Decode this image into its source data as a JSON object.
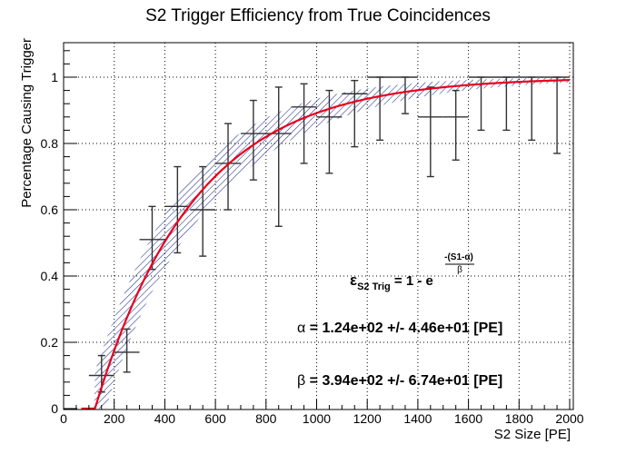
{
  "chart_data": {
    "type": "scatter",
    "title": "S2 Trigger Efficiency from True Coincidences",
    "xlabel": "S2 Size [PE]",
    "ylabel": "Percentage Causing Trigger",
    "xlim": [
      0,
      2000
    ],
    "ylim": [
      0,
      1.1
    ],
    "grid": true,
    "x_ticks": [
      0,
      200,
      400,
      600,
      800,
      1000,
      1200,
      1400,
      1600,
      1800,
      2000
    ],
    "y_ticks": [
      0,
      0.2,
      0.4,
      0.6,
      0.8,
      1
    ],
    "x_tick_labels": [
      "0",
      "200",
      "400",
      "600",
      "800",
      "1000",
      "1200",
      "1400",
      "1600",
      "1800",
      "2000"
    ],
    "y_tick_labels": [
      "0",
      "0.2",
      "0.4",
      "0.6",
      "0.8",
      "1"
    ],
    "points": [
      {
        "x": 150,
        "xerr": 50,
        "y": 0.1,
        "ylo": 0.05,
        "yhi": 0.16
      },
      {
        "x": 250,
        "xerr": 50,
        "y": 0.17,
        "ylo": 0.11,
        "yhi": 0.24
      },
      {
        "x": 350,
        "xerr": 50,
        "y": 0.51,
        "ylo": 0.42,
        "yhi": 0.61
      },
      {
        "x": 450,
        "xerr": 50,
        "y": 0.61,
        "ylo": 0.47,
        "yhi": 0.73
      },
      {
        "x": 550,
        "xerr": 50,
        "y": 0.6,
        "ylo": 0.46,
        "yhi": 0.73
      },
      {
        "x": 650,
        "xerr": 50,
        "y": 0.74,
        "ylo": 0.6,
        "yhi": 0.86
      },
      {
        "x": 750,
        "xerr": 50,
        "y": 0.83,
        "ylo": 0.69,
        "yhi": 0.93
      },
      {
        "x": 850,
        "xerr": 50,
        "y": 0.83,
        "ylo": 0.55,
        "yhi": 0.97
      },
      {
        "x": 950,
        "xerr": 50,
        "y": 0.91,
        "ylo": 0.74,
        "yhi": 0.98
      },
      {
        "x": 1050,
        "xerr": 50,
        "y": 0.88,
        "ylo": 0.71,
        "yhi": 0.96
      },
      {
        "x": 1150,
        "xerr": 50,
        "y": 0.95,
        "ylo": 0.79,
        "yhi": 0.99
      },
      {
        "x": 1250,
        "xerr": 50,
        "y": 1.0,
        "ylo": 0.81,
        "yhi": 1.0
      },
      {
        "x": 1350,
        "xerr": 50,
        "y": 1.0,
        "ylo": 0.89,
        "yhi": 1.0
      },
      {
        "x": 1450,
        "xerr": 50,
        "y": 0.88,
        "ylo": 0.7,
        "yhi": 0.97
      },
      {
        "x": 1550,
        "xerr": 50,
        "y": 0.88,
        "ylo": 0.75,
        "yhi": 0.96
      },
      {
        "x": 1650,
        "xerr": 50,
        "y": 1.0,
        "ylo": 0.84,
        "yhi": 1.0
      },
      {
        "x": 1750,
        "xerr": 50,
        "y": 1.0,
        "ylo": 0.84,
        "yhi": 1.0
      },
      {
        "x": 1850,
        "xerr": 50,
        "y": 1.0,
        "ylo": 0.81,
        "yhi": 1.0
      },
      {
        "x": 1950,
        "xerr": 50,
        "y": 1.0,
        "ylo": 0.77,
        "yhi": 1.0
      }
    ],
    "fit": {
      "formula": "1 - exp(-(S1 - alpha)/beta)",
      "alpha": 124,
      "beta": 394,
      "alpha_err": 44.6,
      "beta_err": 67.4,
      "color": "#e8001c",
      "band_color": "#1f2e8c"
    },
    "annotations": {
      "formula_lhs": "ε",
      "formula_sub": "S2 Trig",
      "formula_mid": " = 1 - e",
      "formula_exp_num": "-(S1-α)",
      "formula_exp_den": "β",
      "alpha_sym": "α",
      "alpha_text": " = 1.24e+02 +/- 4.46e+01 [PE]",
      "beta_sym": "β",
      "beta_text": " = 3.94e+02 +/- 6.74e+01 [PE]"
    }
  }
}
